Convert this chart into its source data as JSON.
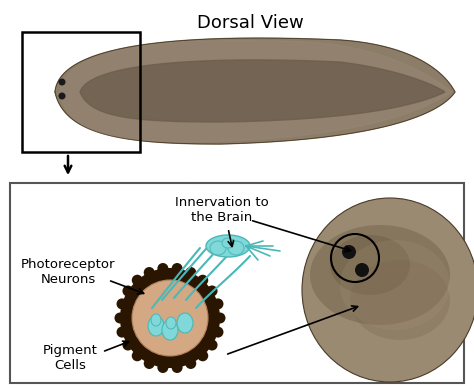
{
  "title": "Dorsal View",
  "title_fontsize": 13,
  "background_color": "#ffffff",
  "labels": {
    "innervation": "Innervation to\nthe Brain",
    "photoreceptor": "Photoreceptor\nNeurons",
    "pigment": "Pigment\nCells"
  },
  "label_fontsize": 9.5,
  "worm_body_color": "#8c7d68",
  "worm_dark_center": "#5a4a38",
  "worm_edge_color": "#6a5c48",
  "eye_color": "#1a1a1a",
  "pigment_dark": "#2a1500",
  "pigment_cup_color": "#d4a882",
  "neuron_fill": "#80d8d8",
  "neuron_stroke": "#4ab8b8",
  "zoom_head_color": "#9a8870",
  "zoom_head_dark": "#6a5840"
}
